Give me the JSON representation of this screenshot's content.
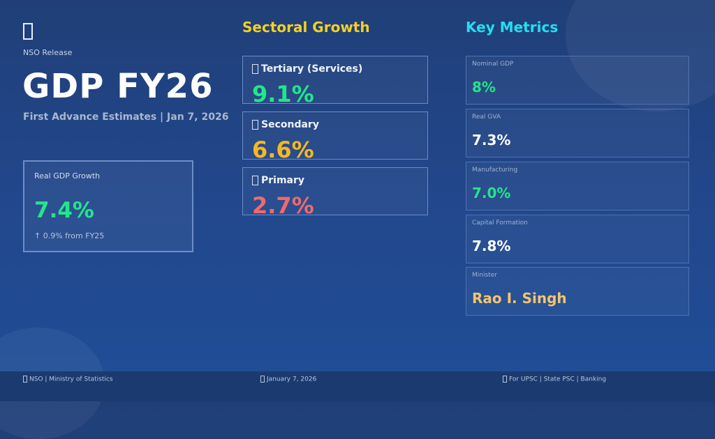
{
  "header": {
    "logo_icon": "missing-glyph",
    "release": "NSO Release",
    "title": "GDP FY26",
    "subtitle": "First Advance Estimates | Jan 7, 2026"
  },
  "highlight": {
    "label": "Real GDP Growth",
    "value": "7.4%",
    "change": "↑ 0.9% from FY25",
    "color": "#22e68a"
  },
  "sectoral": {
    "title": "Sectoral Growth",
    "items": [
      {
        "label": "Tertiary (Services)",
        "value": "9.1%",
        "color": "#22e68a"
      },
      {
        "label": "Secondary",
        "value": "6.6%",
        "color": "#f5b820"
      },
      {
        "label": "Primary",
        "value": "2.7%",
        "color": "#f06a6a"
      }
    ]
  },
  "metrics": {
    "title": "Key Metrics",
    "items": [
      {
        "label": "Nominal GDP",
        "value": "8%",
        "color": "#22e68a"
      },
      {
        "label": "Real GVA",
        "value": "7.3%",
        "color": "#ffffff"
      },
      {
        "label": "Manufacturing",
        "value": "7.0%",
        "color": "#22e68a"
      },
      {
        "label": "Capital Formation",
        "value": "7.8%",
        "color": "#ffffff"
      },
      {
        "label": "Minister",
        "value": "Rao I. Singh",
        "color": "#f7c46a"
      }
    ]
  },
  "footer": {
    "left": "NSO | Ministry of Statistics",
    "center": "January 7, 2026",
    "right": "For UPSC | State PSC | Banking"
  }
}
